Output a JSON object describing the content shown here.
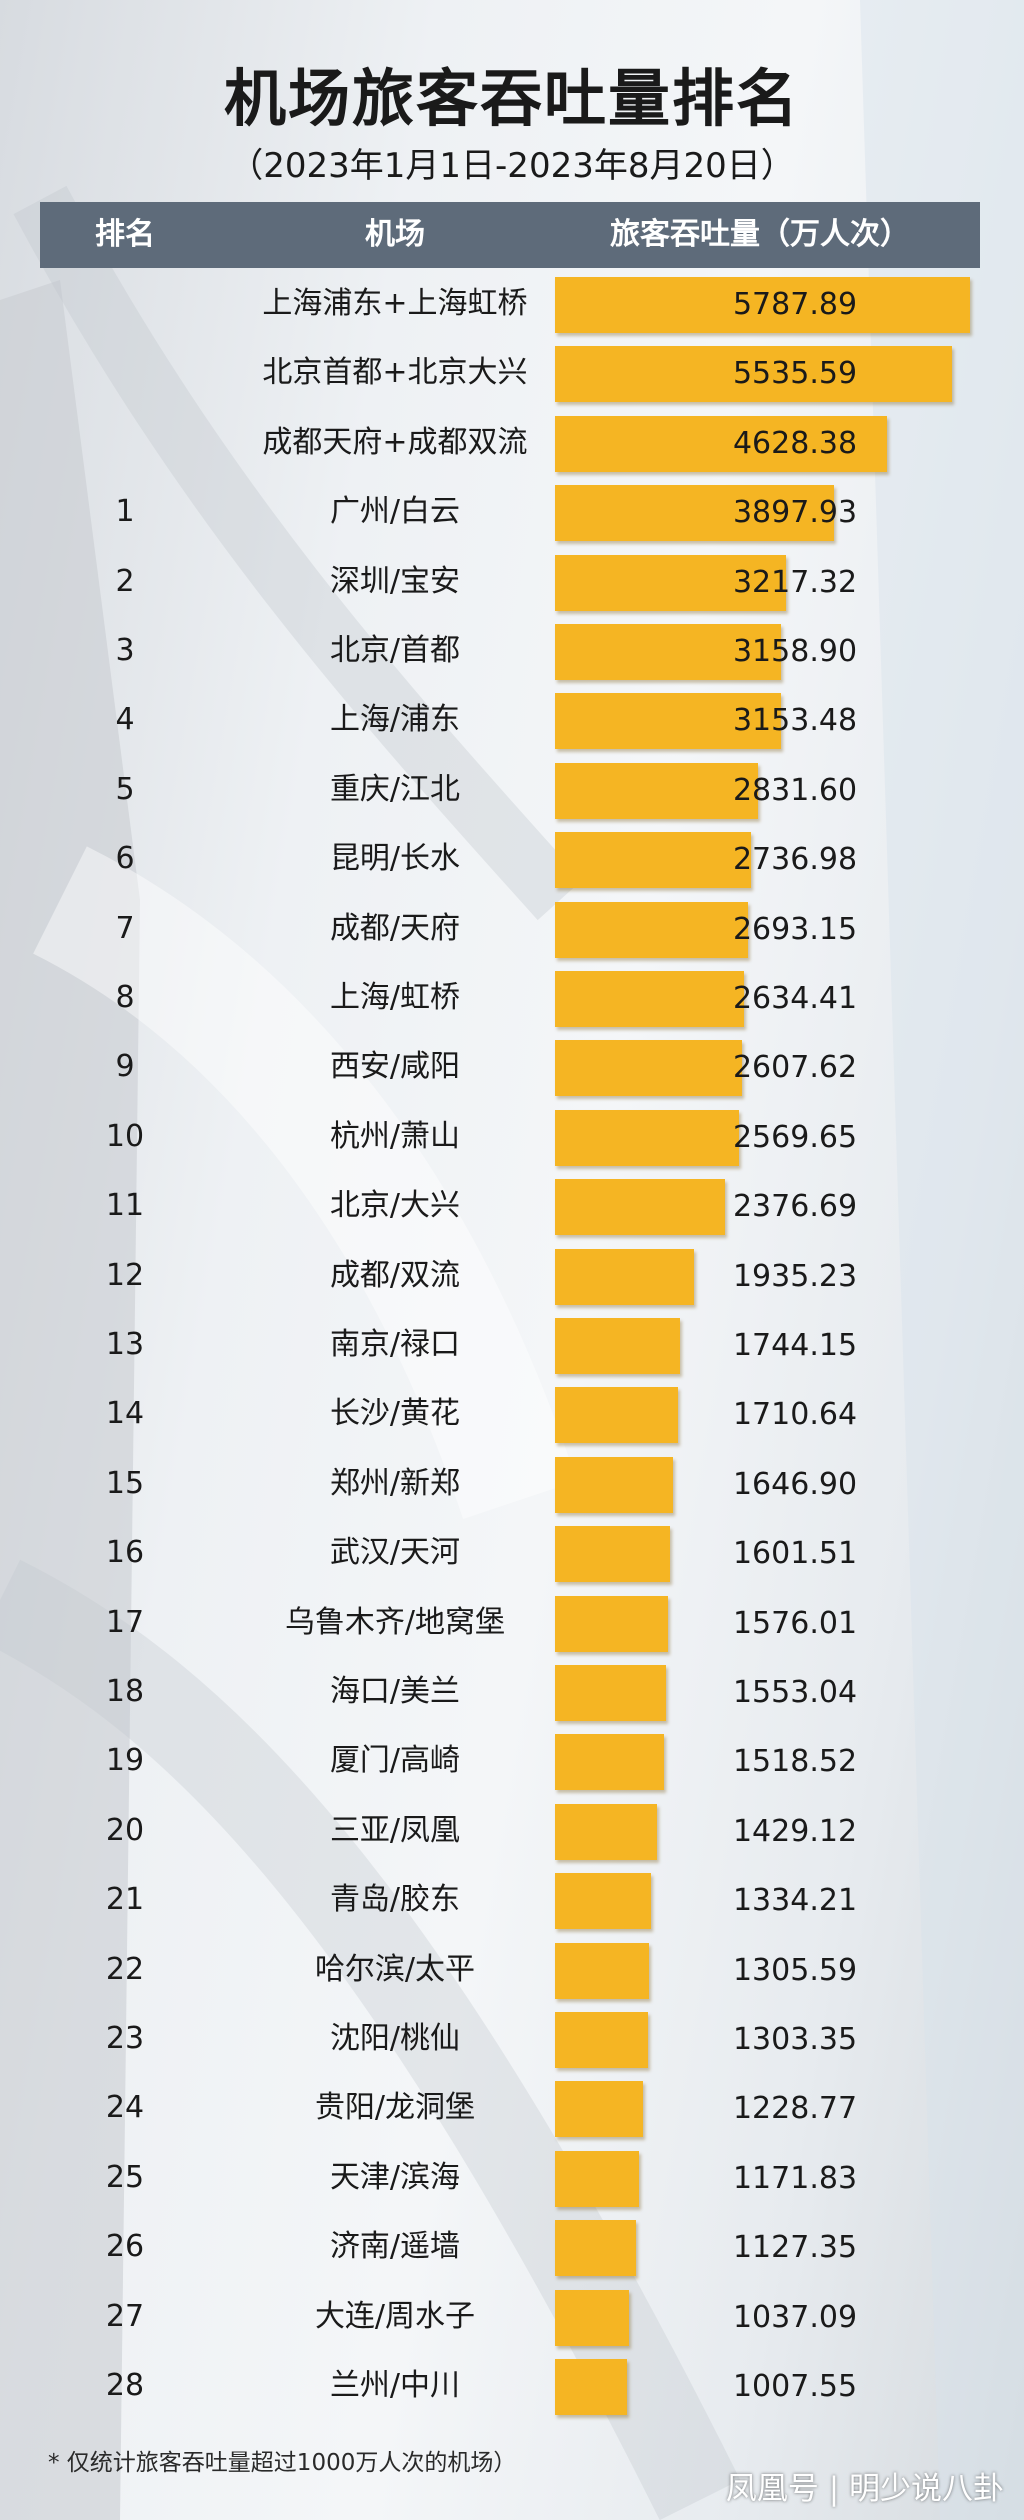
{
  "title": "机场旅客吞吐量排名",
  "subtitle": "（2023年1月1日-2023年8月20日）",
  "header": {
    "rank": "排名",
    "airport": "机场",
    "volume": "旅客吞吐量（万人次）"
  },
  "footnote": "* 仅统计旅客吞吐量超过1000万人次的机场）",
  "watermark": "凤凰号 | 明少说八卦",
  "colors": {
    "bar": "#f5b523",
    "header_bg": "#5e6b7a"
  },
  "chart_data": {
    "type": "bar",
    "orientation": "horizontal",
    "categories": [
      "上海浦东+上海虹桥",
      "北京首都+北京大兴",
      "成都天府+成都双流",
      "广州/白云",
      "深圳/宝安",
      "北京/首都",
      "上海/浦东",
      "重庆/江北",
      "昆明/长水",
      "成都/天府",
      "上海/虹桥",
      "西安/咸阳",
      "杭州/萧山",
      "北京/大兴",
      "成都/双流",
      "南京/禄口",
      "长沙/黄花",
      "郑州/新郑",
      "武汉/天河",
      "乌鲁木齐/地窝堡",
      "海口/美兰",
      "厦门/高崎",
      "三亚/凤凰",
      "青岛/胶东",
      "哈尔滨/太平",
      "沈阳/桃仙",
      "贵阳/龙洞堡",
      "天津/滨海",
      "济南/遥墙",
      "大连/周水子",
      "兰州/中川"
    ],
    "ranks": [
      "",
      "",
      "",
      "1",
      "2",
      "3",
      "4",
      "5",
      "6",
      "7",
      "8",
      "9",
      "10",
      "11",
      "12",
      "13",
      "14",
      "15",
      "16",
      "17",
      "18",
      "19",
      "20",
      "21",
      "22",
      "23",
      "24",
      "25",
      "26",
      "27",
      "28"
    ],
    "values": [
      "5787.89",
      "5535.59",
      "4628.38",
      "3897.93",
      "3217.32",
      "3158.90",
      "3153.48",
      "2831.60",
      "2736.98",
      "2693.15",
      "2634.41",
      "2607.62",
      "2569.65",
      "2376.69",
      "1935.23",
      "1744.15",
      "1710.64",
      "1646.90",
      "1601.51",
      "1576.01",
      "1553.04",
      "1518.52",
      "1429.12",
      "1334.21",
      "1305.59",
      "1303.35",
      "1228.77",
      "1171.83",
      "1127.35",
      "1037.09",
      "1007.55"
    ],
    "xlabel": "旅客吞吐量（万人次）",
    "ylabel": "机场"
  }
}
